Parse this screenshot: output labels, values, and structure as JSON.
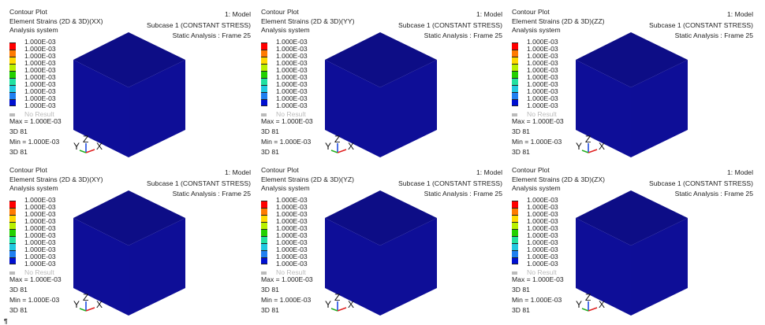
{
  "common": {
    "title": "Contour Plot",
    "system": "Analysis system",
    "model": "1: Model",
    "subcase": "Subcase 1 (CONSTANT STRESS)",
    "analysis": "Static Analysis : Frame 25",
    "legend_values": [
      "1.000E-03",
      "1.000E-03",
      "1.000E-03",
      "1.000E-03",
      "1.000E-03",
      "1.000E-03",
      "1.000E-03",
      "1.000E-03",
      "1.000E-03",
      "1.000E-03"
    ],
    "legend_colors": [
      "#ff0000",
      "#ff7a00",
      "#ffd800",
      "#b8f000",
      "#22d000",
      "#20e0a0",
      "#20c8e0",
      "#2080f0",
      "#0010d0"
    ],
    "no_result": "No Result",
    "max": "Max = 1.000E-03",
    "max_elem": "3D 81",
    "min": "Min = 1.000E-03",
    "min_elem": "3D 81",
    "axis_x": "X",
    "axis_y": "Y",
    "axis_z": "Z",
    "cube_colors": {
      "top": "#0d0d86",
      "left": "#0e0e98",
      "right": "#0e0e97"
    }
  },
  "panels": [
    {
      "result": "Element Strains (2D & 3D)(XX)"
    },
    {
      "result": "Element Strains (2D & 3D)(YY)"
    },
    {
      "result": "Element Strains (2D & 3D)(ZZ)"
    },
    {
      "result": "Element Strains (2D & 3D)(XY)"
    },
    {
      "result": "Element Strains (2D & 3D)(YZ)"
    },
    {
      "result": "Element Strains (2D & 3D)(ZX)"
    }
  ],
  "corner_marker": "¶"
}
